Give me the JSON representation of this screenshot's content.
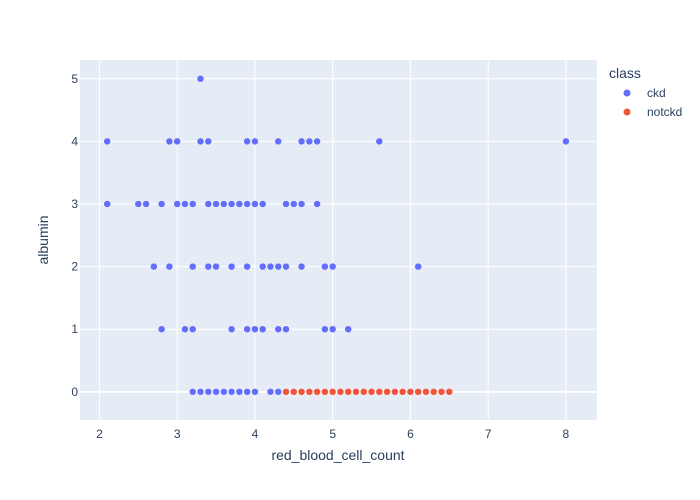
{
  "chart_data": {
    "type": "scatter",
    "xlabel": "red_blood_cell_count",
    "ylabel": "albumin",
    "xlim": [
      1.75,
      8.4
    ],
    "ylim": [
      -0.45,
      5.3
    ],
    "x_ticks": [
      "2",
      "3",
      "4",
      "5",
      "6",
      "7",
      "8"
    ],
    "y_ticks": [
      "0",
      "1",
      "2",
      "3",
      "4",
      "5"
    ],
    "grid": true,
    "legend": {
      "title": "class",
      "placement": "top-right"
    },
    "series": [
      {
        "name": "ckd",
        "color": "#636efa",
        "points": [
          [
            3.3,
            5
          ],
          [
            2.1,
            4
          ],
          [
            2.9,
            4
          ],
          [
            3.0,
            4
          ],
          [
            3.3,
            4
          ],
          [
            3.4,
            4
          ],
          [
            3.9,
            4
          ],
          [
            4.0,
            4
          ],
          [
            4.3,
            4
          ],
          [
            4.6,
            4
          ],
          [
            4.7,
            4
          ],
          [
            4.8,
            4
          ],
          [
            5.6,
            4
          ],
          [
            8.0,
            4
          ],
          [
            2.1,
            3
          ],
          [
            2.5,
            3
          ],
          [
            2.6,
            3
          ],
          [
            2.8,
            3
          ],
          [
            3.0,
            3
          ],
          [
            3.1,
            3
          ],
          [
            3.2,
            3
          ],
          [
            3.4,
            3
          ],
          [
            3.5,
            3
          ],
          [
            3.6,
            3
          ],
          [
            3.7,
            3
          ],
          [
            3.8,
            3
          ],
          [
            3.9,
            3
          ],
          [
            4.0,
            3
          ],
          [
            4.1,
            3
          ],
          [
            4.4,
            3
          ],
          [
            4.5,
            3
          ],
          [
            4.6,
            3
          ],
          [
            4.8,
            3
          ],
          [
            2.7,
            2
          ],
          [
            2.9,
            2
          ],
          [
            3.2,
            2
          ],
          [
            3.4,
            2
          ],
          [
            3.5,
            2
          ],
          [
            3.7,
            2
          ],
          [
            3.9,
            2
          ],
          [
            4.1,
            2
          ],
          [
            4.2,
            2
          ],
          [
            4.3,
            2
          ],
          [
            4.4,
            2
          ],
          [
            4.6,
            2
          ],
          [
            4.9,
            2
          ],
          [
            5.0,
            2
          ],
          [
            6.1,
            2
          ],
          [
            2.8,
            1
          ],
          [
            3.1,
            1
          ],
          [
            3.2,
            1
          ],
          [
            3.7,
            1
          ],
          [
            3.9,
            1
          ],
          [
            4.0,
            1
          ],
          [
            4.1,
            1
          ],
          [
            4.3,
            1
          ],
          [
            4.4,
            1
          ],
          [
            4.9,
            1
          ],
          [
            5.0,
            1
          ],
          [
            5.2,
            1
          ],
          [
            3.2,
            0
          ],
          [
            3.3,
            0
          ],
          [
            3.4,
            0
          ],
          [
            3.5,
            0
          ],
          [
            3.6,
            0
          ],
          [
            3.7,
            0
          ],
          [
            3.8,
            0
          ],
          [
            3.9,
            0
          ],
          [
            4.0,
            0
          ],
          [
            4.2,
            0
          ],
          [
            4.3,
            0
          ]
        ]
      },
      {
        "name": "notckd",
        "color": "#ef553b",
        "points": [
          [
            4.4,
            0
          ],
          [
            4.5,
            0
          ],
          [
            4.6,
            0
          ],
          [
            4.7,
            0
          ],
          [
            4.8,
            0
          ],
          [
            4.9,
            0
          ],
          [
            5.0,
            0
          ],
          [
            5.1,
            0
          ],
          [
            5.2,
            0
          ],
          [
            5.3,
            0
          ],
          [
            5.4,
            0
          ],
          [
            5.5,
            0
          ],
          [
            5.6,
            0
          ],
          [
            5.7,
            0
          ],
          [
            5.8,
            0
          ],
          [
            5.9,
            0
          ],
          [
            6.0,
            0
          ],
          [
            6.1,
            0
          ],
          [
            6.2,
            0
          ],
          [
            6.3,
            0
          ],
          [
            6.4,
            0
          ],
          [
            6.5,
            0
          ]
        ]
      }
    ]
  }
}
